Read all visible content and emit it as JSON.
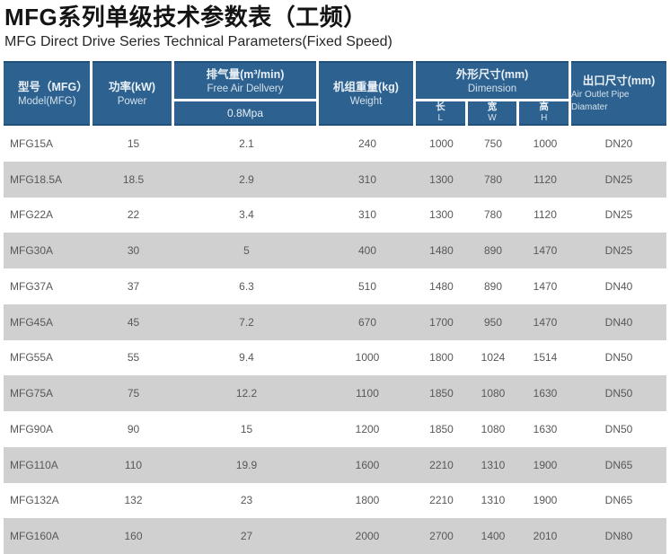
{
  "page": {
    "title": "MFG系列单级技术参数表（工频）",
    "subtitle": "MFG Direct Drive Series Technical Parameters(Fixed Speed)"
  },
  "table": {
    "columns": {
      "model": {
        "zh": "型号（MFG）",
        "en": "Model(MFG)"
      },
      "power": {
        "zh": "功率(kW)",
        "en": "Power"
      },
      "fad": {
        "zh": "排气量(m³/min)",
        "en": "Free Air Dellvery",
        "sub": "0.8Mpa"
      },
      "weight": {
        "zh": "机组重量(kg)",
        "en": "Weight"
      },
      "dimension": {
        "zh": "外形尺寸(mm)",
        "en": "Dimension",
        "sub": [
          {
            "zh": "长",
            "en": "L"
          },
          {
            "zh": "宽",
            "en": "W"
          },
          {
            "zh": "高",
            "en": "H"
          }
        ]
      },
      "outlet": {
        "zh": "出口尺寸(mm)",
        "en": "Air Outlet Pipe Diamater"
      }
    },
    "rows": [
      [
        "MFG15A",
        "15",
        "2.1",
        "240",
        "1000",
        "750",
        "1000",
        "DN20"
      ],
      [
        "MFG18.5A",
        "18.5",
        "2.9",
        "310",
        "1300",
        "780",
        "1120",
        "DN25"
      ],
      [
        "MFG22A",
        "22",
        "3.4",
        "310",
        "1300",
        "780",
        "1120",
        "DN25"
      ],
      [
        "MFG30A",
        "30",
        "5",
        "400",
        "1480",
        "890",
        "1470",
        "DN25"
      ],
      [
        "MFG37A",
        "37",
        "6.3",
        "510",
        "1480",
        "890",
        "1470",
        "DN40"
      ],
      [
        "MFG45A",
        "45",
        "7.2",
        "670",
        "1700",
        "950",
        "1470",
        "DN40"
      ],
      [
        "MFG55A",
        "55",
        "9.4",
        "1000",
        "1800",
        "1024",
        "1514",
        "DN50"
      ],
      [
        "MFG75A",
        "75",
        "12.2",
        "1100",
        "1850",
        "1080",
        "1630",
        "DN50"
      ],
      [
        "MFG90A",
        "90",
        "15",
        "1200",
        "1850",
        "1080",
        "1630",
        "DN50"
      ],
      [
        "MFG110A",
        "110",
        "19.9",
        "1600",
        "2210",
        "1310",
        "1900",
        "DN65"
      ],
      [
        "MFG132A",
        "132",
        "23",
        "1800",
        "2210",
        "1310",
        "1900",
        "DN65"
      ],
      [
        "MFG160A",
        "160",
        "27",
        "2000",
        "2700",
        "1400",
        "2010",
        "DN80"
      ]
    ]
  },
  "colors": {
    "header_bg": "#2d6190",
    "header_border": "#21507a",
    "stripe": "#d0d0d0",
    "data_text": "#57585a"
  }
}
